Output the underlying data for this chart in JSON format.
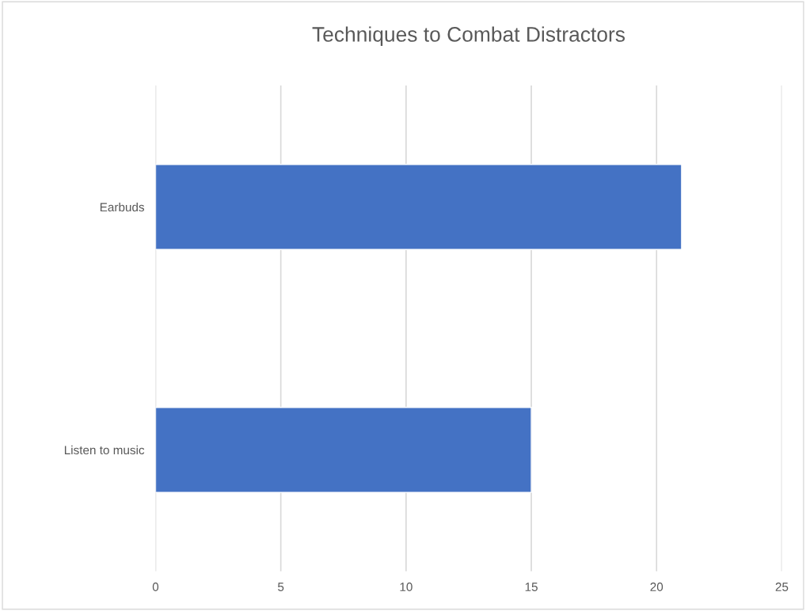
{
  "chart_data": {
    "type": "bar",
    "orientation": "horizontal",
    "title": "Techniques to Combat Distractors",
    "categories": [
      "Earbuds",
      "Listen to music"
    ],
    "values": [
      21,
      15
    ],
    "color": "#4472c4",
    "xlim": [
      0,
      25
    ],
    "xticks": [
      0,
      5,
      10,
      15,
      20,
      25
    ],
    "grid": "x"
  }
}
